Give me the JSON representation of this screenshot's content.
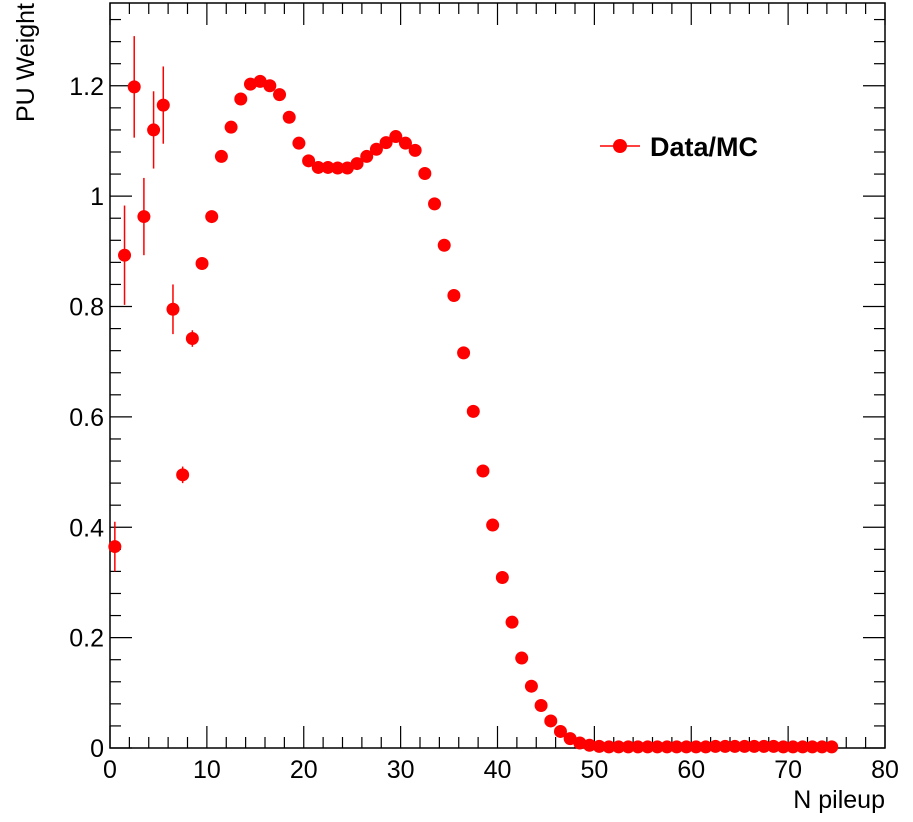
{
  "chart_data": {
    "type": "scatter",
    "title": "",
    "xlabel": "N pileup",
    "ylabel": "PU Weight",
    "xlim": [
      0,
      80
    ],
    "ylim": [
      0,
      1.35
    ],
    "x_ticks": [
      0,
      10,
      20,
      30,
      40,
      50,
      60,
      70,
      80
    ],
    "x_tick_labels": [
      "0",
      "10",
      "20",
      "30",
      "40",
      "50",
      "60",
      "70",
      "80"
    ],
    "y_ticks": [
      0,
      0.2,
      0.4,
      0.6,
      0.8,
      1.0,
      1.2
    ],
    "y_tick_labels": [
      "0",
      "0.2",
      "0.4",
      "0.6",
      "0.8",
      "1",
      "1.2"
    ],
    "grid": false,
    "legend_position": "top-right",
    "series": [
      {
        "name": "Data/MC",
        "color": "#ff0000",
        "x": [
          0.5,
          1.5,
          2.5,
          3.5,
          4.5,
          5.5,
          6.5,
          7.5,
          8.5,
          9.5,
          10.5,
          11.5,
          12.5,
          13.5,
          14.5,
          15.5,
          16.5,
          17.5,
          18.5,
          19.5,
          20.5,
          21.5,
          22.5,
          23.5,
          24.5,
          25.5,
          26.5,
          27.5,
          28.5,
          29.5,
          30.5,
          31.5,
          32.5,
          33.5,
          34.5,
          35.5,
          36.5,
          37.5,
          38.5,
          39.5,
          40.5,
          41.5,
          42.5,
          43.5,
          44.5,
          45.5,
          46.5,
          47.5,
          48.5,
          49.5,
          50.5,
          51.5,
          52.5,
          53.5,
          54.5,
          55.5,
          56.5,
          57.5,
          58.5,
          59.5,
          60.5,
          61.5,
          62.5,
          63.5,
          64.5,
          65.5,
          66.5,
          67.5,
          68.5,
          69.5,
          70.5,
          71.5,
          72.5,
          73.5,
          74.5
        ],
        "y": [
          0.365,
          0.893,
          1.198,
          0.963,
          1.12,
          1.165,
          0.795,
          0.495,
          0.742,
          0.878,
          0.963,
          1.072,
          1.125,
          1.176,
          1.203,
          1.208,
          1.2,
          1.184,
          1.143,
          1.096,
          1.064,
          1.052,
          1.052,
          1.051,
          1.051,
          1.059,
          1.072,
          1.085,
          1.097,
          1.108,
          1.096,
          1.083,
          1.041,
          0.986,
          0.911,
          0.82,
          0.716,
          0.61,
          0.502,
          0.404,
          0.309,
          0.228,
          0.163,
          0.112,
          0.077,
          0.049,
          0.03,
          0.017,
          0.009,
          0.005,
          0.003,
          0.002,
          0.002,
          0.002,
          0.002,
          0.002,
          0.002,
          0.002,
          0.002,
          0.002,
          0.002,
          0.002,
          0.003,
          0.003,
          0.003,
          0.003,
          0.003,
          0.003,
          0.003,
          0.002,
          0.002,
          0.002,
          0.002,
          0.002,
          0.002
        ],
        "y_err": [
          0.045,
          0.09,
          0.092,
          0.07,
          0.07,
          0.07,
          0.045,
          0.015,
          0.015,
          0.01,
          0.008,
          0.006,
          0.005,
          0.004,
          0.003,
          0.003,
          0.003,
          0.003,
          0.003,
          0.003,
          0.003,
          0.003,
          0.003,
          0.003,
          0.003,
          0.003,
          0.003,
          0.003,
          0.003,
          0.003,
          0.003,
          0.003,
          0.003,
          0.003,
          0.003,
          0.003,
          0.003,
          0.003,
          0.003,
          0.003,
          0.003,
          0.003,
          0.003,
          0.003,
          0.003,
          0.003,
          0.002,
          0.002,
          0.002,
          0.001,
          0.001,
          0.001,
          0.001,
          0.001,
          0.001,
          0.001,
          0.001,
          0.001,
          0.001,
          0.001,
          0.001,
          0.001,
          0.001,
          0.001,
          0.001,
          0.001,
          0.001,
          0.001,
          0.001,
          0.001,
          0.001,
          0.001,
          0.001,
          0.001,
          0.001
        ]
      }
    ]
  }
}
